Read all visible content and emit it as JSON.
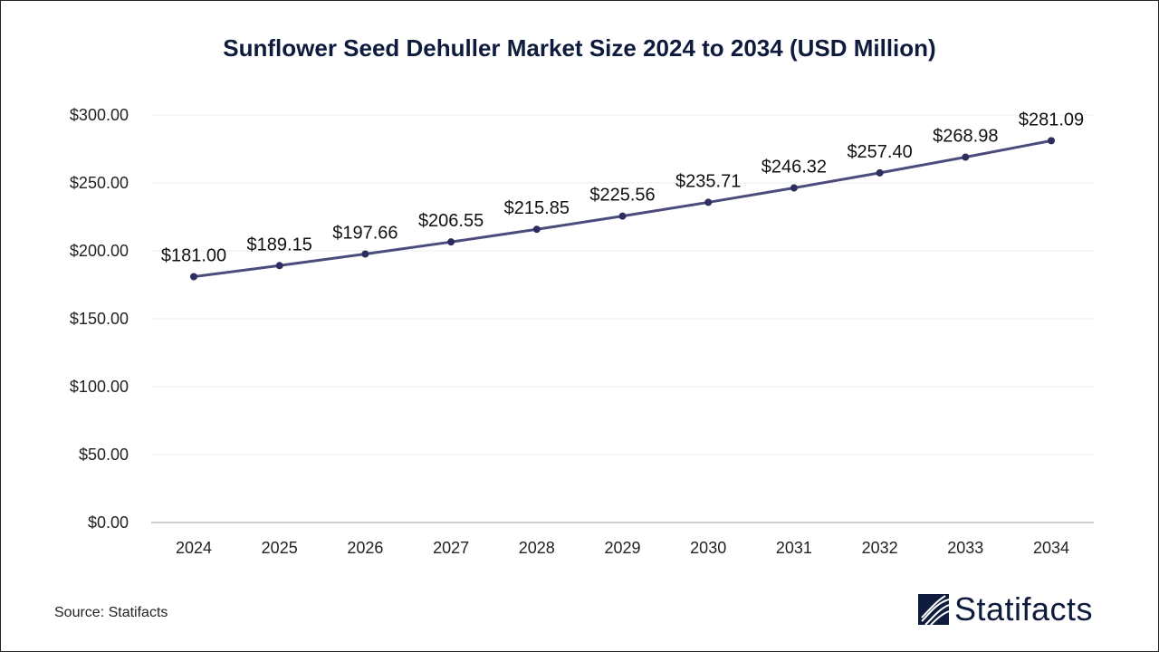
{
  "chart_data": {
    "type": "line",
    "title": "Sunflower Seed Dehuller Market Size 2024 to 2034 (USD Million)",
    "categories": [
      "2024",
      "2025",
      "2026",
      "2027",
      "2028",
      "2029",
      "2030",
      "2031",
      "2032",
      "2033",
      "2034"
    ],
    "values": [
      181.0,
      189.15,
      197.66,
      206.55,
      215.85,
      225.56,
      235.71,
      246.32,
      257.4,
      268.98,
      281.09
    ],
    "data_labels": [
      "$181.00",
      "$189.15",
      "$197.66",
      "$206.55",
      "$215.85",
      "$225.56",
      "$235.71",
      "$246.32",
      "$257.40",
      "$268.98",
      "$281.09"
    ],
    "yticks": [
      0,
      50,
      100,
      150,
      200,
      250,
      300
    ],
    "ytick_labels": [
      "$0.00",
      "$50.00",
      "$100.00",
      "$150.00",
      "$200.00",
      "$250.00",
      "$300.00"
    ],
    "ylim": [
      0,
      300
    ],
    "xlabel": "",
    "ylabel": "",
    "grid": true,
    "legend": "none",
    "colors": {
      "line": "#4b4b7c",
      "marker": "#2d2d60",
      "grid": "#ececec",
      "title": "#0f1b3d"
    }
  },
  "footer": {
    "source": "Source: Statifacts",
    "logo_text": "Statifacts"
  }
}
